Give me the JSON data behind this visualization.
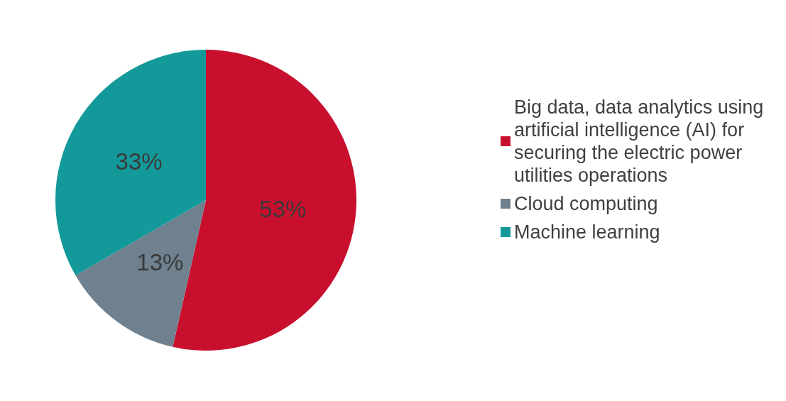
{
  "chart_data": {
    "type": "pie",
    "categories": [
      "Big data, data analytics using artificial intelligence (AI) for securing the electric power utilities operations",
      "Cloud computing",
      "Machine learning"
    ],
    "values": [
      53,
      13,
      33
    ],
    "colors": [
      "#c8102e",
      "#6f808e",
      "#14999a"
    ],
    "value_labels": [
      "53%",
      "13%",
      "33%"
    ],
    "legend": "right"
  }
}
